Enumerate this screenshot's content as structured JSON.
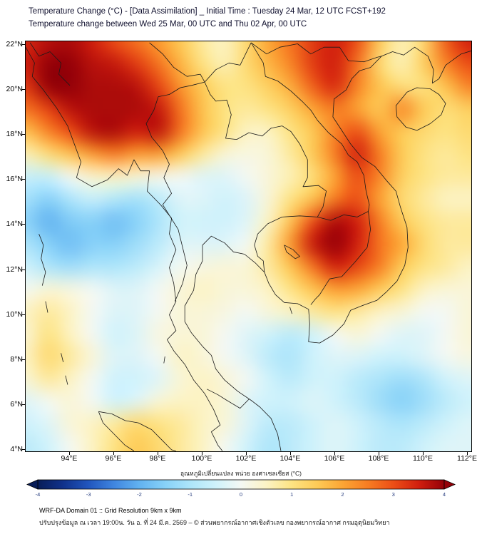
{
  "header": {
    "title_line1": "Temperature Change (°C) - [Data Assimilation] _ Initial Time : Tuesday 24 Mar, 12 UTC FCST+192",
    "title_line2": "Temperature change between Wed 25 Mar, 00 UTC and Thu 02 Apr, 00 UTC"
  },
  "axes": {
    "y_ticks": [
      {
        "label": "22°N",
        "value": 22
      },
      {
        "label": "20°N",
        "value": 20
      },
      {
        "label": "18°N",
        "value": 18
      },
      {
        "label": "16°N",
        "value": 16
      },
      {
        "label": "14°N",
        "value": 14
      },
      {
        "label": "12°N",
        "value": 12
      },
      {
        "label": "10°N",
        "value": 10
      },
      {
        "label": "8°N",
        "value": 8
      },
      {
        "label": "6°N",
        "value": 6
      },
      {
        "label": "4°N",
        "value": 4
      }
    ],
    "x_ticks": [
      {
        "label": "94°E",
        "value": 94
      },
      {
        "label": "96°E",
        "value": 96
      },
      {
        "label": "98°E",
        "value": 98
      },
      {
        "label": "100°E",
        "value": 100
      },
      {
        "label": "102°E",
        "value": 102
      },
      {
        "label": "104°E",
        "value": 104
      },
      {
        "label": "106°E",
        "value": 106
      },
      {
        "label": "108°E",
        "value": 108
      },
      {
        "label": "110°E",
        "value": 110
      },
      {
        "label": "112°E",
        "value": 112
      }
    ]
  },
  "colorbar": {
    "label": "อุณหภูมิเปลี่ยนแปลง หน่วย องศาเซลเซียส (°C)",
    "ticks": [
      -4,
      -3,
      -2,
      -1,
      0,
      1,
      2,
      3,
      4
    ],
    "min": -4,
    "max": 4,
    "stops": [
      [
        -4,
        8,
        29,
        88
      ],
      [
        -3.5,
        16,
        50,
        140
      ],
      [
        -3,
        33,
        86,
        190
      ],
      [
        -2.5,
        64,
        134,
        224
      ],
      [
        -2,
        98,
        178,
        240
      ],
      [
        -1.5,
        135,
        209,
        248
      ],
      [
        -1,
        173,
        229,
        250
      ],
      [
        -0.5,
        207,
        242,
        251
      ],
      [
        0,
        244,
        248,
        244
      ],
      [
        0.5,
        252,
        243,
        196
      ],
      [
        1,
        253,
        227,
        130
      ],
      [
        1.5,
        253,
        202,
        86
      ],
      [
        2,
        252,
        165,
        52
      ],
      [
        2.5,
        247,
        124,
        34
      ],
      [
        3,
        236,
        78,
        22
      ],
      [
        3.5,
        208,
        30,
        14
      ],
      [
        4,
        148,
        0,
        8
      ]
    ]
  },
  "footer": {
    "line1": "WRF-DA Domain 01 :: Grid Resolution 9km x 9km",
    "line2": "ปรับปรุงข้อมูล ณ เวลา 19:00น. วัน อ. ที่ 24 มี.ค. 2569 – © ส่วนพยากรณ์อากาศเชิงตัวเลข กองพยากรณ์อากาศ กรมอุตุนิยมวิทยา"
  },
  "chart_data": {
    "type": "heatmap",
    "title": "Temperature Change (°C) - [Data Assimilation] _ Initial Time : Tuesday 24 Mar, 12 UTC FCST+192",
    "subtitle": "Temperature change between Wed 25 Mar, 00 UTC and Thu 02 Apr, 00 UTC",
    "colorbar_label": "อุณหภูมิเปลี่ยนแปลง หน่วย องศาเซลเซียส (°C)",
    "value_range": [
      -4,
      4
    ],
    "lon_range": [
      92,
      112.16
    ],
    "lat_range": [
      3.94,
      22.16
    ],
    "grid": {
      "lons": [
        92,
        93,
        94,
        95,
        96,
        97,
        98,
        99,
        100,
        101,
        102,
        103,
        104,
        105,
        106,
        107,
        108,
        109,
        110,
        111,
        112
      ],
      "lats": [
        22,
        21,
        20,
        19,
        18,
        17,
        16,
        15,
        14,
        13,
        12,
        11,
        10,
        9,
        8,
        7,
        6,
        5,
        4
      ],
      "values_c": [
        [
          3.4,
          3.7,
          3.8,
          3.5,
          3.0,
          2.6,
          2.1,
          1.5,
          0.8,
          0.5,
          1.2,
          2.0,
          2.6,
          3.2,
          3.5,
          3.0,
          1.5,
          0.6,
          1.2,
          2.8,
          3.5
        ],
        [
          3.5,
          4.0,
          4.0,
          3.7,
          3.6,
          3.2,
          2.6,
          1.8,
          1.0,
          0.6,
          1.2,
          1.8,
          2.4,
          3.2,
          3.5,
          2.6,
          1.2,
          0.6,
          1.4,
          2.4,
          3.0
        ],
        [
          3.2,
          4.0,
          4.0,
          3.8,
          3.8,
          3.7,
          3.1,
          2.2,
          1.5,
          1.0,
          1.0,
          1.4,
          1.9,
          2.8,
          3.4,
          2.4,
          1.6,
          1.1,
          1.0,
          1.6,
          2.4
        ],
        [
          2.6,
          3.1,
          3.7,
          3.8,
          3.8,
          3.8,
          3.6,
          2.6,
          1.6,
          1.0,
          0.8,
          1.0,
          1.4,
          2.0,
          2.5,
          2.0,
          1.5,
          2.4,
          1.5,
          1.1,
          1.4
        ],
        [
          1.6,
          2.4,
          3.0,
          3.7,
          3.8,
          3.5,
          3.7,
          2.6,
          1.6,
          1.0,
          0.5,
          0.5,
          1.0,
          1.5,
          2.4,
          3.0,
          2.0,
          1.5,
          1.2,
          1.0,
          1.2
        ],
        [
          0.6,
          1.1,
          1.6,
          2.1,
          2.5,
          2.1,
          2.1,
          1.5,
          0.8,
          0.3,
          0.2,
          0.3,
          0.8,
          1.5,
          2.5,
          3.5,
          2.5,
          1.5,
          1.0,
          0.8,
          1.0
        ],
        [
          -0.6,
          -0.6,
          0.0,
          0.4,
          0.5,
          0.3,
          0.1,
          0.0,
          -0.3,
          -0.3,
          0.0,
          0.3,
          0.6,
          1.1,
          2.0,
          3.0,
          2.4,
          1.4,
          1.0,
          0.8,
          0.8
        ],
        [
          -1.1,
          -1.5,
          -1.0,
          -0.6,
          -0.9,
          -1.1,
          -0.8,
          -0.3,
          -0.3,
          -0.5,
          -0.3,
          0.3,
          1.0,
          1.6,
          2.5,
          3.0,
          2.0,
          1.2,
          0.8,
          0.5,
          0.5
        ],
        [
          -1.4,
          -2.0,
          -1.6,
          -1.5,
          -1.8,
          -1.5,
          -1.0,
          -0.5,
          -0.5,
          -0.5,
          -0.3,
          0.5,
          1.6,
          3.0,
          3.8,
          3.5,
          2.5,
          1.5,
          1.0,
          0.8,
          0.8
        ],
        [
          -1.0,
          -1.5,
          -1.8,
          -1.5,
          -1.5,
          -1.2,
          -0.8,
          -0.3,
          -0.3,
          -0.3,
          0.0,
          0.8,
          2.2,
          3.6,
          4.0,
          3.5,
          2.6,
          2.0,
          1.2,
          0.8,
          0.8
        ],
        [
          -0.5,
          -1.0,
          -1.2,
          -1.0,
          -1.0,
          -0.8,
          -0.4,
          0.0,
          0.2,
          0.3,
          0.3,
          0.8,
          1.6,
          2.6,
          3.5,
          3.1,
          2.5,
          1.5,
          1.0,
          0.8,
          0.5
        ],
        [
          0.0,
          0.3,
          0.2,
          0.0,
          -0.3,
          -0.3,
          0.0,
          0.3,
          0.5,
          0.3,
          0.3,
          0.5,
          1.0,
          1.6,
          2.1,
          2.0,
          1.5,
          1.0,
          0.5,
          0.3,
          0.3
        ],
        [
          0.5,
          0.8,
          0.5,
          0.0,
          -0.3,
          -0.3,
          0.0,
          0.3,
          0.3,
          0.2,
          0.0,
          0.3,
          0.5,
          0.8,
          1.0,
          0.8,
          0.5,
          0.3,
          0.0,
          0.0,
          0.3
        ],
        [
          0.3,
          1.0,
          0.5,
          0.0,
          -0.5,
          -0.3,
          0.2,
          0.3,
          0.3,
          0.0,
          -0.3,
          -0.5,
          -0.8,
          -0.5,
          0.0,
          0.3,
          0.0,
          -0.3,
          -0.3,
          0.0,
          0.3
        ],
        [
          0.5,
          1.2,
          0.8,
          0.3,
          -0.3,
          -0.3,
          0.0,
          0.5,
          0.3,
          0.0,
          -0.3,
          -0.8,
          -1.0,
          -0.5,
          -0.3,
          -0.3,
          -0.5,
          -0.5,
          -0.3,
          0.0,
          0.2
        ],
        [
          0.3,
          0.8,
          0.5,
          0.0,
          -0.5,
          -0.5,
          -0.3,
          0.3,
          0.5,
          0.3,
          0.0,
          -0.5,
          -0.8,
          -0.5,
          -0.5,
          -0.8,
          -1.0,
          -1.2,
          -1.0,
          -0.5,
          -0.3
        ],
        [
          -0.3,
          0.0,
          0.3,
          0.0,
          -0.5,
          -0.3,
          0.3,
          0.5,
          0.5,
          0.3,
          -0.3,
          -0.5,
          -0.5,
          -0.3,
          -0.5,
          -0.8,
          -1.2,
          -1.5,
          -1.2,
          -0.8,
          -0.5
        ],
        [
          -0.5,
          -0.3,
          0.3,
          0.5,
          0.8,
          1.2,
          1.0,
          0.8,
          0.5,
          0.3,
          -0.3,
          -0.8,
          -0.8,
          -0.5,
          -0.3,
          -0.5,
          -0.8,
          -1.0,
          -0.8,
          -0.5,
          -0.3
        ],
        [
          -0.8,
          -0.5,
          0.0,
          0.5,
          1.0,
          1.5,
          1.2,
          0.8,
          0.5,
          0.0,
          -0.5,
          -1.0,
          -0.8,
          -0.5,
          -0.3,
          -0.5,
          -0.8,
          -0.8,
          -0.5,
          -0.3,
          -0.3
        ]
      ]
    }
  }
}
